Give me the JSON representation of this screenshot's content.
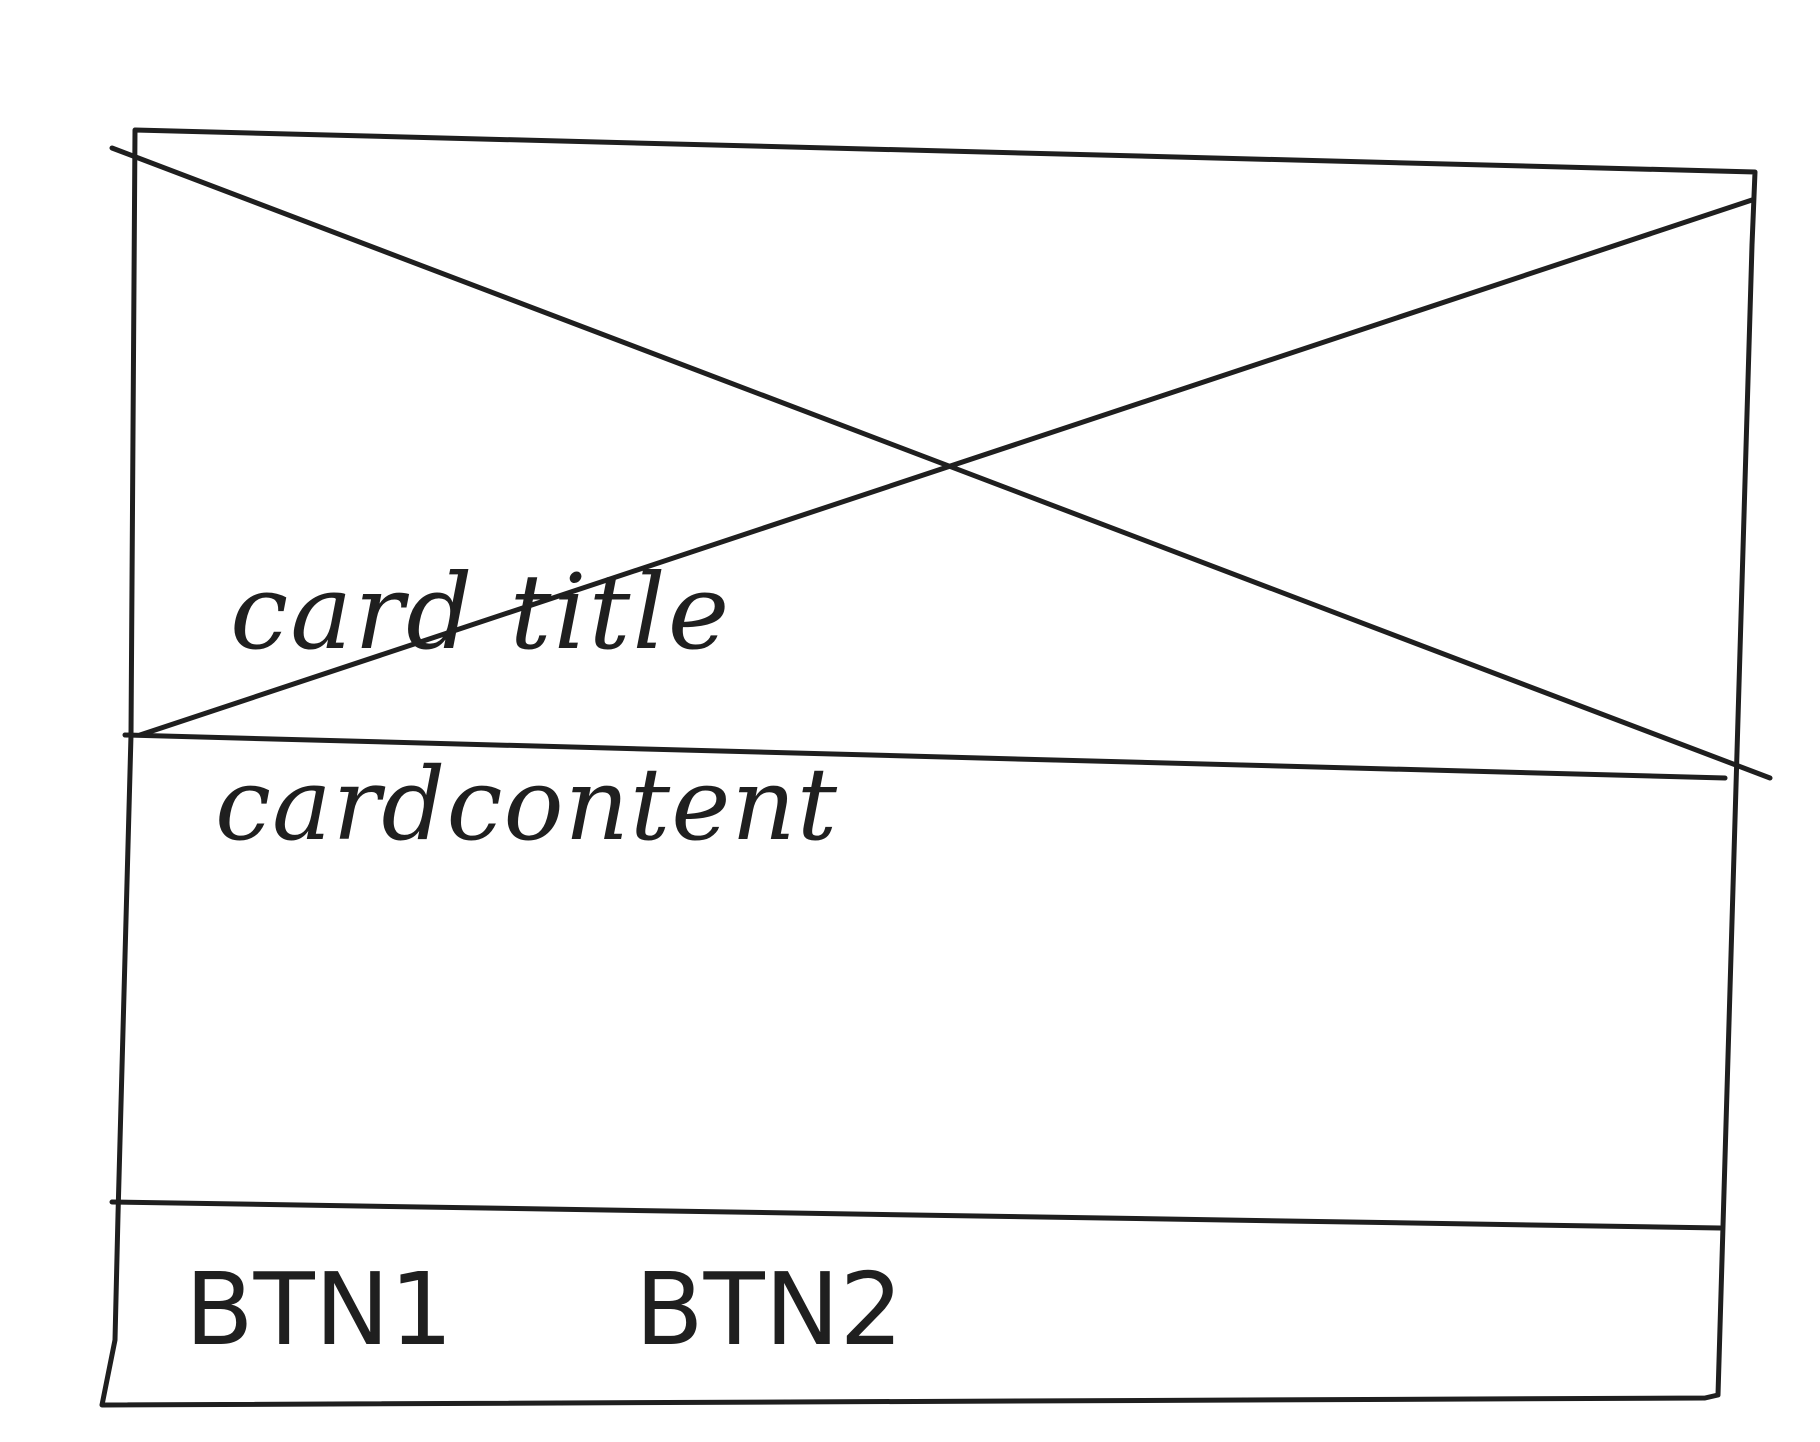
{
  "card": {
    "title": "card title",
    "content": "cardcontent",
    "actions": {
      "button_1_label": "BTN1",
      "button_2_label": "BTN2"
    }
  }
}
